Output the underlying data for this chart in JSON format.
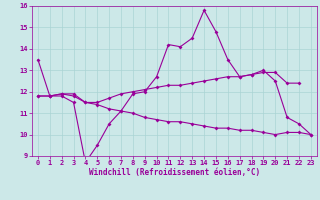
{
  "x": [
    0,
    1,
    2,
    3,
    4,
    5,
    6,
    7,
    8,
    9,
    10,
    11,
    12,
    13,
    14,
    15,
    16,
    17,
    18,
    19,
    20,
    21,
    22,
    23
  ],
  "line1": [
    13.5,
    11.8,
    11.8,
    11.5,
    8.7,
    9.5,
    10.5,
    11.1,
    11.9,
    12.0,
    12.7,
    14.2,
    14.1,
    14.5,
    15.8,
    14.8,
    13.5,
    12.7,
    12.8,
    13.0,
    12.5,
    10.8,
    10.5,
    10.0
  ],
  "line2": [
    11.8,
    11.8,
    11.9,
    11.8,
    11.5,
    11.5,
    11.7,
    11.9,
    12.0,
    12.1,
    12.2,
    12.3,
    12.3,
    12.4,
    12.5,
    12.6,
    12.7,
    12.7,
    12.8,
    12.9,
    12.9,
    12.4,
    12.4,
    null
  ],
  "line3": [
    11.8,
    11.8,
    11.9,
    11.9,
    11.5,
    11.4,
    11.2,
    11.1,
    11.0,
    10.8,
    10.7,
    10.6,
    10.6,
    10.5,
    10.4,
    10.3,
    10.3,
    10.2,
    10.2,
    10.1,
    10.0,
    10.1,
    10.1,
    10.0
  ],
  "line_color": "#990099",
  "bg_color": "#cce8e8",
  "grid_color": "#aad4d4",
  "xlabel": "Windchill (Refroidissement éolien,°C)",
  "ylim": [
    9,
    16
  ],
  "xlim": [
    -0.5,
    23.5
  ],
  "yticks": [
    9,
    10,
    11,
    12,
    13,
    14,
    15,
    16
  ],
  "xticks": [
    0,
    1,
    2,
    3,
    4,
    5,
    6,
    7,
    8,
    9,
    10,
    11,
    12,
    13,
    14,
    15,
    16,
    17,
    18,
    19,
    20,
    21,
    22,
    23
  ],
  "xlabel_fontsize": 5.5,
  "tick_fontsize": 5.0,
  "linewidth": 0.8,
  "markersize": 2.0
}
